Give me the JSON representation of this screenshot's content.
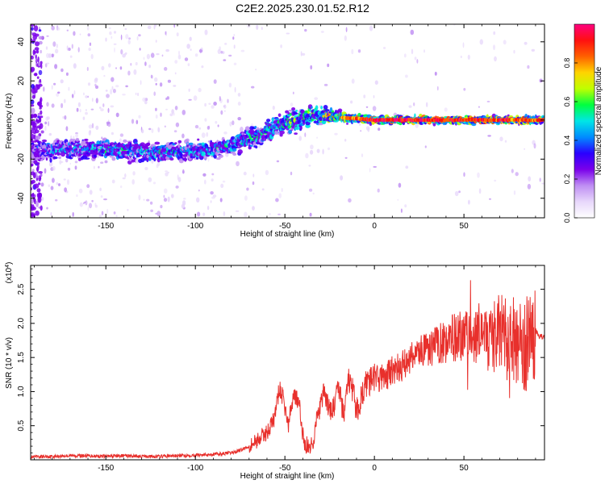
{
  "title": "C2E2.2025.230.01.52.R12",
  "colors": {
    "snr_line": "#e8302c",
    "axis": "#000000",
    "colormap": [
      "#ffffff",
      "#e7d7fb",
      "#bf8ef3",
      "#7a00ea",
      "#2a00ff",
      "#008cff",
      "#00e6e6",
      "#00ff40",
      "#bfff00",
      "#ffd400",
      "#ff6000",
      "#ff1010",
      "#ff0080"
    ]
  },
  "chart_data": [
    {
      "type": "heatmap",
      "name": "spectrogram",
      "title": "",
      "xlabel": "Height of straight line (km)",
      "ylabel": "Frequency (Hz)",
      "xlim": [
        -192,
        95
      ],
      "ylim": [
        -50,
        49
      ],
      "x_ticks": [
        -150,
        -100,
        -50,
        0,
        50
      ],
      "y_ticks": [
        -40,
        -20,
        0,
        20,
        40
      ],
      "colorbar": {
        "label": "Normalized spectral amplitude",
        "range": [
          0,
          1
        ],
        "ticks": [
          "0.0",
          "0.2",
          "0.4",
          "0.6",
          "0.8"
        ]
      },
      "ridge": [
        {
          "x": -192,
          "y": -16,
          "amp": 0.35,
          "spread": 5
        },
        {
          "x": -175,
          "y": -15,
          "amp": 0.45,
          "spread": 4
        },
        {
          "x": -150,
          "y": -15,
          "amp": 0.5,
          "spread": 4
        },
        {
          "x": -125,
          "y": -16,
          "amp": 0.5,
          "spread": 4
        },
        {
          "x": -100,
          "y": -16,
          "amp": 0.5,
          "spread": 4
        },
        {
          "x": -80,
          "y": -13,
          "amp": 0.5,
          "spread": 4
        },
        {
          "x": -65,
          "y": -8,
          "amp": 0.55,
          "spread": 4
        },
        {
          "x": -55,
          "y": -3,
          "amp": 0.55,
          "spread": 5
        },
        {
          "x": -45,
          "y": 0,
          "amp": 0.6,
          "spread": 5
        },
        {
          "x": -35,
          "y": 2,
          "amp": 0.65,
          "spread": 4
        },
        {
          "x": -25,
          "y": 2,
          "amp": 0.75,
          "spread": 3
        },
        {
          "x": -15,
          "y": 1,
          "amp": 0.85,
          "spread": 2
        },
        {
          "x": 0,
          "y": 0,
          "amp": 0.95,
          "spread": 1.5
        },
        {
          "x": 50,
          "y": 0,
          "amp": 0.95,
          "spread": 1.5
        },
        {
          "x": 95,
          "y": 0,
          "amp": 0.9,
          "spread": 1.5
        }
      ]
    },
    {
      "type": "line",
      "name": "snr",
      "title": "",
      "xlabel": "Height of straight line (km)",
      "ylabel": "SNR (10 * v/v)",
      "scale_label": "(x10",
      "scale_exp": "4",
      "xlim": [
        -192,
        95
      ],
      "ylim": [
        0,
        2.85
      ],
      "x_ticks": [
        -150,
        -100,
        -50,
        0,
        50
      ],
      "y_ticks": [
        "0.5",
        "1.0",
        "1.5",
        "2.0",
        "2.5"
      ],
      "series": [
        {
          "x": [
            -192,
            -180,
            -170,
            -160,
            -150,
            -140,
            -130,
            -120,
            -110,
            -100,
            -90,
            -80,
            -75,
            -70,
            -65,
            -60,
            -56,
            -53,
            -51,
            -48,
            -45,
            -42,
            -40,
            -38,
            -35,
            -32,
            -28,
            -25,
            -22,
            -20,
            -17,
            -15,
            -12,
            -10,
            -5,
            0,
            5,
            10,
            15,
            20,
            25,
            30,
            35,
            40,
            45,
            50,
            55,
            60,
            63,
            66,
            70,
            75,
            80,
            83,
            86,
            88,
            90,
            92,
            95
          ],
          "y": [
            0.04,
            0.05,
            0.06,
            0.06,
            0.05,
            0.06,
            0.05,
            0.05,
            0.06,
            0.07,
            0.08,
            0.1,
            0.14,
            0.2,
            0.3,
            0.4,
            0.6,
            1.05,
            0.9,
            0.5,
            1.0,
            0.8,
            0.35,
            0.2,
            0.2,
            0.6,
            1.0,
            0.7,
            0.8,
            1.1,
            0.6,
            1.2,
            1.0,
            0.7,
            1.1,
            1.2,
            1.2,
            1.3,
            1.35,
            1.5,
            1.6,
            1.6,
            1.7,
            1.75,
            1.8,
            1.8,
            1.7,
            1.9,
            1.8,
            1.75,
            1.9,
            1.7,
            1.8,
            1.6,
            1.75,
            1.85,
            1.9,
            1.8,
            1.8
          ]
        }
      ]
    }
  ]
}
